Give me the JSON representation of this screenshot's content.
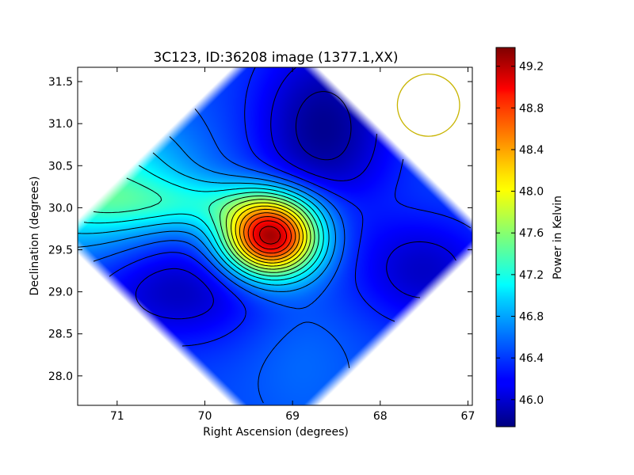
{
  "chart_data": {
    "type": "heatmap",
    "title": "3C123, ID:36208 image (1377.1,XX)",
    "xlabel": "Right Ascension (degrees)",
    "ylabel": "Declination (degrees)",
    "xlim": [
      71.45,
      66.95
    ],
    "ylim": [
      27.65,
      31.67
    ],
    "x_ticks": [
      71,
      70,
      69,
      68,
      67
    ],
    "x_tick_labels": [
      "71",
      "70",
      "69",
      "68",
      "67"
    ],
    "y_ticks": [
      28.0,
      28.5,
      29.0,
      29.5,
      30.0,
      30.5,
      31.0,
      31.5
    ],
    "y_tick_labels": [
      "28.0",
      "28.5",
      "29.0",
      "29.5",
      "30.0",
      "30.5",
      "31.0",
      "31.5"
    ],
    "colormap": "jet",
    "colorbar": {
      "label": "Power in Kelvin",
      "range": [
        45.74,
        49.38
      ],
      "ticks": [
        46.0,
        46.4,
        46.8,
        47.2,
        47.6,
        48.0,
        48.4,
        48.8,
        49.2
      ],
      "tick_labels": [
        "46.0",
        "46.4",
        "46.8",
        "47.2",
        "47.6",
        "48.0",
        "48.4",
        "48.8",
        "49.2"
      ]
    },
    "peak": {
      "ra": 69.25,
      "dec": 29.65,
      "value": 49.3
    },
    "features": [
      {
        "ra": 71.3,
        "dec": 30.3,
        "value": 47.3
      },
      {
        "ra": 70.3,
        "dec": 29.05,
        "value": 45.95
      },
      {
        "ra": 68.65,
        "dec": 30.95,
        "value": 45.8
      },
      {
        "ra": 67.5,
        "dec": 29.25,
        "value": 46.0
      },
      {
        "ra": 70.05,
        "dec": 30.05,
        "value": 46.95
      }
    ],
    "contour_interval": 0.2,
    "marker_circle": {
      "ra": 67.45,
      "dec": 31.22,
      "radius_deg": 0.37,
      "color": "#c8b400"
    },
    "grid": false,
    "accent_colors": {
      "contour": "#000000",
      "blank_region": "#ffffff"
    }
  }
}
